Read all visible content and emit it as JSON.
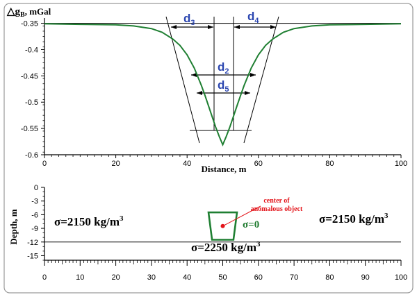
{
  "colors": {
    "curve": "#1f7f32",
    "annotation": "#2b46b0",
    "note": "#e3141a",
    "frame": "#9a9a9a"
  },
  "chart_data": [
    {
      "type": "line",
      "ylabel_main": "△g",
      "ylabel_sub": "B",
      "ylabel_unit": ", mGal",
      "xlabel": "Distance, m",
      "xlim": [
        0,
        100
      ],
      "ylim": [
        -0.6,
        -0.35
      ],
      "x_ticks": [
        "0",
        "20",
        "40",
        "60",
        "80",
        "100"
      ],
      "y_ticks": [
        "-0.35",
        "-0.4",
        "-0.45",
        "-0.5",
        "-0.55",
        "-0.6"
      ],
      "series": [
        {
          "x": [
            0,
            10,
            20,
            25,
            30,
            33,
            36,
            38,
            40,
            42,
            44,
            45,
            46,
            47,
            48,
            49,
            50,
            51,
            52,
            53,
            54,
            55,
            56,
            58,
            60,
            62,
            64,
            67,
            70,
            75,
            80,
            90,
            100
          ],
          "y": [
            -0.351,
            -0.352,
            -0.353,
            -0.355,
            -0.36,
            -0.367,
            -0.38,
            -0.392,
            -0.41,
            -0.435,
            -0.468,
            -0.487,
            -0.507,
            -0.527,
            -0.547,
            -0.565,
            -0.581,
            -0.565,
            -0.547,
            -0.527,
            -0.507,
            -0.487,
            -0.468,
            -0.435,
            -0.41,
            -0.392,
            -0.38,
            -0.367,
            -0.36,
            -0.355,
            -0.353,
            -0.352,
            -0.351
          ]
        }
      ],
      "annotations": [
        {
          "label": "d",
          "sub": "3"
        },
        {
          "label": "d",
          "sub": "4"
        },
        {
          "label": "d",
          "sub": "2"
        },
        {
          "label": "d",
          "sub": "5"
        }
      ]
    },
    {
      "type": "diagram",
      "ylabel": "Depth, m",
      "xlim": [
        0,
        100
      ],
      "ylim": [
        -16,
        0
      ],
      "x_ticks": [
        "0",
        "10",
        "20",
        "30",
        "40",
        "50",
        "60",
        "70",
        "80",
        "90",
        "100"
      ],
      "y_ticks": [
        "0",
        "-3",
        "-6",
        "-9",
        "-12",
        "-15"
      ],
      "layer_boundary_depth": -12,
      "object": {
        "top_x": [
          46,
          54
        ],
        "bottom_x": [
          47,
          53
        ],
        "top_depth": -5.5,
        "bottom_depth": -11.5,
        "center": [
          50,
          -8.5
        ]
      },
      "labels": {
        "left_sigma": "σ=2150 kg/m",
        "right_sigma": "σ=2150 kg/m",
        "bottom_sigma": "σ=2250 kg/m",
        "sup": "3",
        "object_sigma": "σ=0",
        "center_line1": "center of",
        "center_line2": "anomalous object"
      }
    }
  ]
}
